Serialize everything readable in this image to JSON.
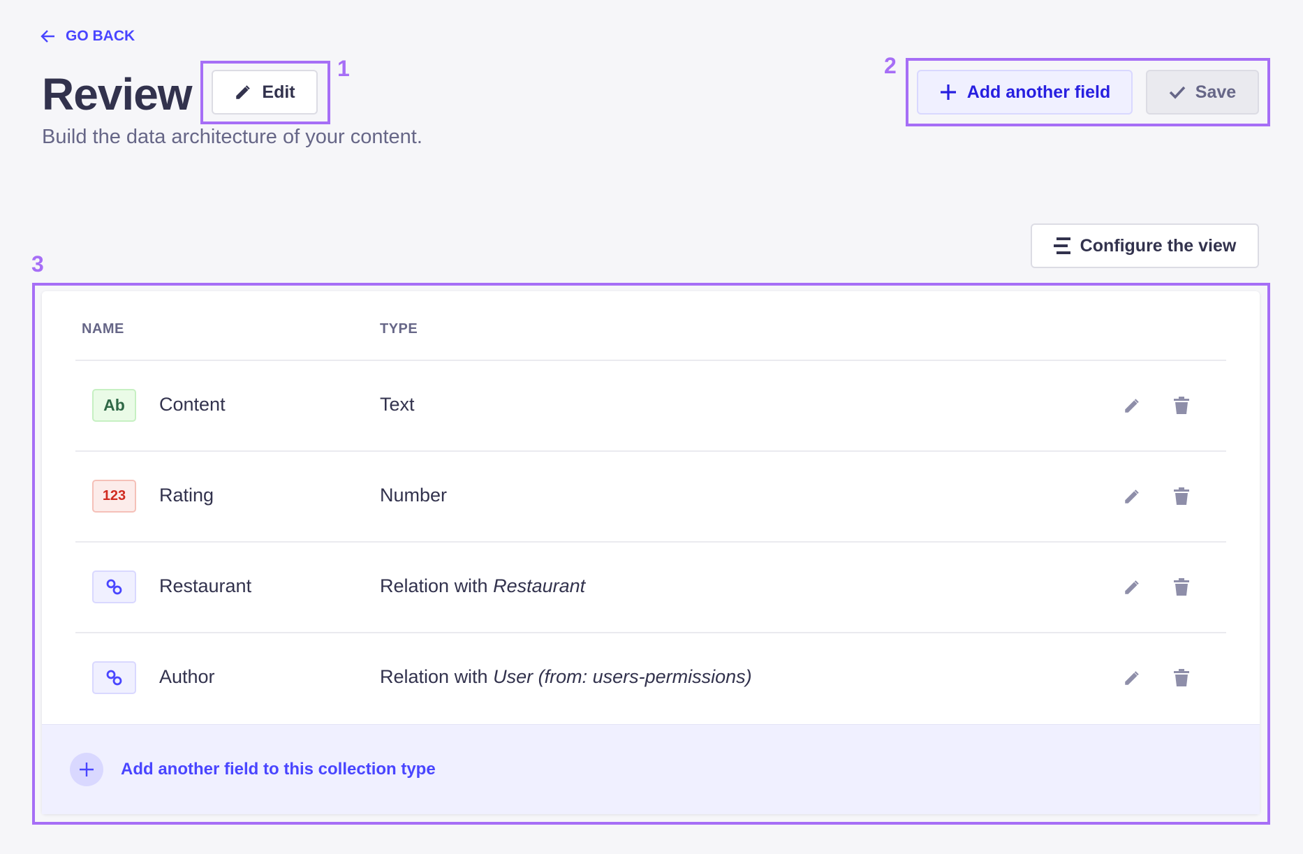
{
  "header": {
    "go_back": "GO BACK",
    "title": "Review",
    "edit_label": "Edit",
    "subtitle": "Build the data architecture of your content.",
    "add_field_label": "Add another field",
    "save_label": "Save",
    "configure_view_label": "Configure the view"
  },
  "annotations": [
    "1",
    "2",
    "3"
  ],
  "table": {
    "columns": [
      "NAME",
      "TYPE"
    ],
    "rows": [
      {
        "badge": "Ab",
        "badge_kind": "text",
        "name": "Content",
        "type": "Text",
        "type_target": ""
      },
      {
        "badge": "123",
        "badge_kind": "number",
        "name": "Rating",
        "type": "Number",
        "type_target": ""
      },
      {
        "badge": "",
        "badge_kind": "relation",
        "name": "Restaurant",
        "type": "Relation with ",
        "type_target": "Restaurant"
      },
      {
        "badge": "",
        "badge_kind": "relation",
        "name": "Author",
        "type": "Relation with ",
        "type_target": "User (from: users-permissions)"
      }
    ],
    "footer_add": "Add another field to this collection type"
  },
  "colors": {
    "primary": "#4945ff",
    "annotation": "#a66ef6",
    "text_badge": "#2f6846",
    "number_badge": "#d02b20",
    "background": "#f6f6f9"
  }
}
